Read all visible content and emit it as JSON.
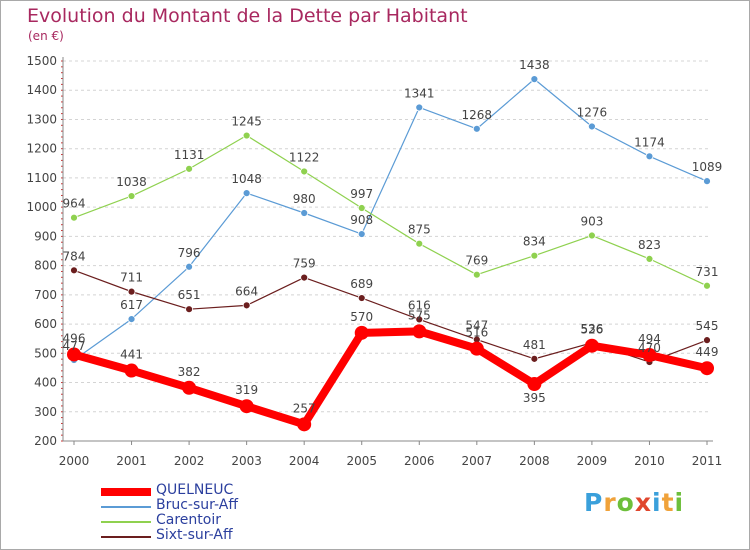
{
  "title": "Evolution du Montant de la Dette par Habitant",
  "unit": "(en €)",
  "logo": {
    "text": "Proxiti",
    "letter_colors": [
      "#3aa0db",
      "#f0a23a",
      "#6dbf3b",
      "#e0462d",
      "#3aa0db",
      "#f0a23a",
      "#6dbf3b"
    ]
  },
  "chart_data": {
    "type": "line",
    "x": [
      "2000",
      "2001",
      "2002",
      "2003",
      "2004",
      "2005",
      "2006",
      "2007",
      "2008",
      "2009",
      "2010",
      "2011"
    ],
    "ylim": [
      200,
      1500
    ],
    "yticks": [
      200,
      300,
      400,
      500,
      600,
      700,
      800,
      900,
      1000,
      1100,
      1200,
      1300,
      1400,
      1500
    ],
    "grid": "horizontal dashed",
    "legend_position": "bottom-left",
    "series": [
      {
        "name": "QUELNEUC",
        "color": "#ff0000",
        "values": [
          496,
          441,
          382,
          319,
          257,
          570,
          575,
          516,
          395,
          526,
          494,
          449
        ]
      },
      {
        "name": "Bruc-sur-Aff",
        "color": "#5b9bd5",
        "values": [
          477,
          617,
          796,
          1048,
          980,
          908,
          1341,
          1268,
          1438,
          1276,
          1174,
          1089
        ]
      },
      {
        "name": "Carentoir",
        "color": "#8fd14f",
        "values": [
          964,
          1038,
          1131,
          1245,
          1122,
          997,
          875,
          769,
          834,
          903,
          823,
          731
        ]
      },
      {
        "name": "Sixt-sur-Aff",
        "color": "#6b1e1e",
        "values": [
          784,
          711,
          651,
          664,
          759,
          689,
          616,
          547,
          481,
          536,
          470,
          545
        ]
      }
    ]
  }
}
